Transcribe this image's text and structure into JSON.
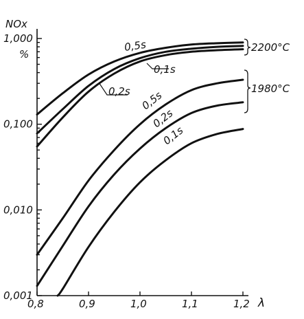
{
  "chart_data": {
    "type": "line",
    "title": "",
    "ylabel": "NOx",
    "yunit": "%",
    "xlabel": "λ",
    "y_scale": "log",
    "xlim": [
      0.8,
      1.2
    ],
    "ylim": [
      0.001,
      1.0
    ],
    "x_ticks": [
      "0,8",
      "0,9",
      "1,0",
      "1,1",
      "1,2"
    ],
    "y_ticks": [
      "0,001",
      "0,010",
      "0,100",
      "1,000"
    ],
    "grid": false,
    "groups": [
      "2200°C",
      "1980°C"
    ],
    "series": [
      {
        "name": "0,5s",
        "group": "2200°C",
        "x": [
          0.8,
          0.85,
          0.9,
          0.95,
          1.0,
          1.05,
          1.1,
          1.15,
          1.2
        ],
        "y": [
          0.13,
          0.23,
          0.38,
          0.54,
          0.68,
          0.78,
          0.85,
          0.88,
          0.9
        ]
      },
      {
        "name": "0,2s",
        "group": "2200°C",
        "x": [
          0.8,
          0.85,
          0.9,
          0.95,
          1.0,
          1.05,
          1.1,
          1.15,
          1.2
        ],
        "y": [
          0.078,
          0.15,
          0.28,
          0.44,
          0.59,
          0.7,
          0.76,
          0.8,
          0.82
        ]
      },
      {
        "name": "0,1s",
        "group": "2200°C",
        "x": [
          0.8,
          0.85,
          0.9,
          0.95,
          1.0,
          1.05,
          1.1,
          1.15,
          1.2
        ],
        "y": [
          0.055,
          0.12,
          0.24,
          0.39,
          0.54,
          0.64,
          0.7,
          0.73,
          0.75
        ]
      },
      {
        "name": "0,5s",
        "group": "1980°C",
        "x": [
          0.8,
          0.85,
          0.9,
          0.95,
          1.0,
          1.05,
          1.1,
          1.15,
          1.2
        ],
        "y": [
          0.003,
          0.008,
          0.022,
          0.05,
          0.1,
          0.17,
          0.25,
          0.3,
          0.33
        ]
      },
      {
        "name": "0,2s",
        "group": "1980°C",
        "x": [
          0.8,
          0.85,
          0.9,
          0.95,
          1.0,
          1.05,
          1.1,
          1.15,
          1.2
        ],
        "y": [
          0.0013,
          0.0038,
          0.011,
          0.026,
          0.052,
          0.09,
          0.135,
          0.165,
          0.18
        ]
      },
      {
        "name": "0,1s",
        "group": "1980°C",
        "x": [
          0.84,
          0.85,
          0.9,
          0.95,
          1.0,
          1.05,
          1.1,
          1.15,
          1.2
        ],
        "y": [
          0.001,
          0.0012,
          0.0037,
          0.0095,
          0.021,
          0.038,
          0.06,
          0.077,
          0.088
        ]
      }
    ]
  }
}
